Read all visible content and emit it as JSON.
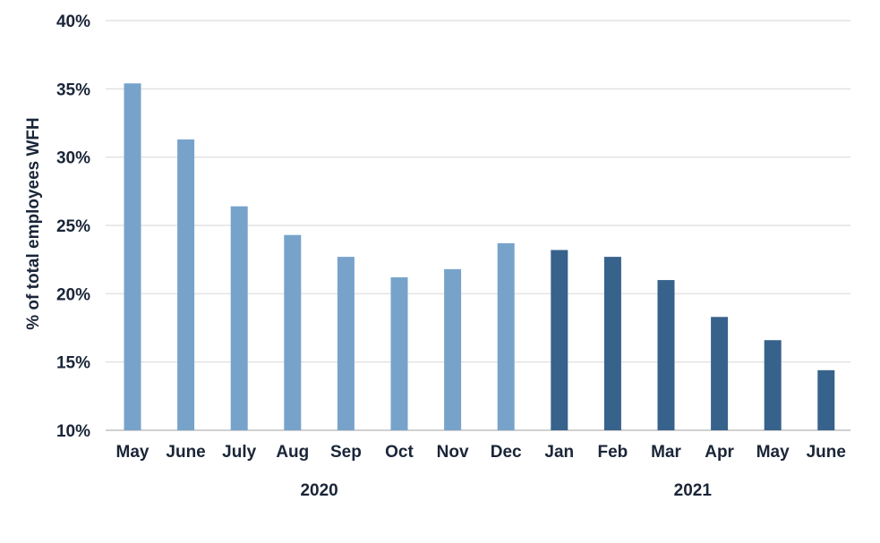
{
  "chart_data": {
    "type": "bar",
    "title": "",
    "ylabel": "% of total employees WFH",
    "xlabel": "",
    "ylim": [
      10,
      40
    ],
    "yticks": [
      10,
      15,
      20,
      25,
      30,
      35,
      40
    ],
    "ytick_labels": [
      "10%",
      "15%",
      "20%",
      "25%",
      "30%",
      "35%",
      "40%"
    ],
    "grid": true,
    "categories": [
      "May",
      "June",
      "July",
      "Aug",
      "Sep",
      "Oct",
      "Nov",
      "Dec",
      "Jan",
      "Feb",
      "Mar",
      "Apr",
      "May",
      "June"
    ],
    "values": [
      35.4,
      31.3,
      26.4,
      24.3,
      22.7,
      21.2,
      21.8,
      23.7,
      23.2,
      22.7,
      21.0,
      18.3,
      16.6,
      14.4
    ],
    "groups": [
      {
        "label": "2020",
        "start": 0,
        "end": 7,
        "color": "#77a3cb"
      },
      {
        "label": "2021",
        "start": 8,
        "end": 13,
        "color": "#37628b"
      }
    ]
  },
  "colors": {
    "gridline": "#e3e3e3",
    "baseline": "#d0d0d0",
    "text": "#1a2538"
  }
}
